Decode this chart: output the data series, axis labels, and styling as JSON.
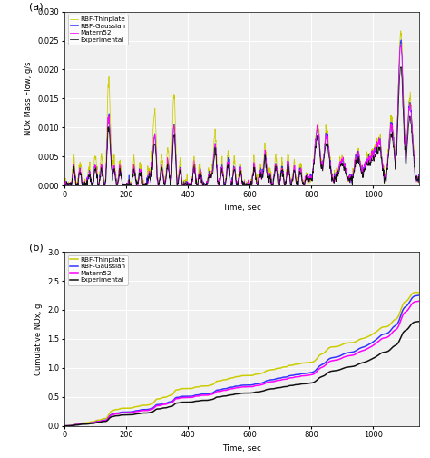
{
  "title_a": "(a)",
  "title_b": "(b)",
  "xlabel": "Time, sec",
  "ylabel_a": "NOx Mass Flow, g/s",
  "ylabel_b": "Cumulative NOx, g",
  "xlim": [
    0,
    1150
  ],
  "ylim_a": [
    0,
    0.03
  ],
  "ylim_b": [
    0,
    3
  ],
  "yticks_a": [
    0,
    0.005,
    0.01,
    0.015,
    0.02,
    0.025,
    0.03
  ],
  "yticks_b": [
    0,
    0.5,
    1.0,
    1.5,
    2.0,
    2.5,
    3.0
  ],
  "xticks_a": [
    0,
    200,
    400,
    600,
    800,
    1000
  ],
  "xticks_b": [
    0,
    200,
    400,
    600,
    800,
    1000
  ],
  "legend_labels": [
    "Matern52",
    "RBF-Gaussian",
    "RBF-Thinplate",
    "Experimental"
  ],
  "colors": {
    "matern52": "#FF00FF",
    "rbf_gaussian": "#3333FF",
    "rbf_thinplate": "#CCCC00",
    "experimental": "#111111"
  },
  "linewidth_a": 0.55,
  "linewidth_b": 1.1,
  "bg_color": "#F0F0F0",
  "grid_color": "#FFFFFF"
}
